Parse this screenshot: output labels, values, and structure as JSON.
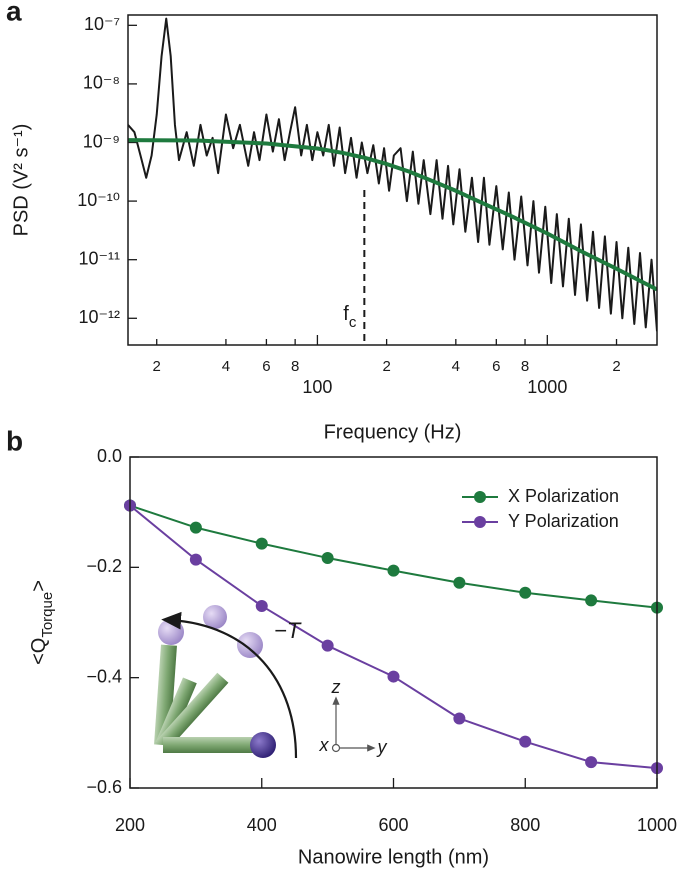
{
  "chart_data": [
    {
      "type": "line",
      "panel_label": "a",
      "x_label": "Frequency (Hz)",
      "y_label": "PSD (V² s⁻¹)",
      "log_x": true,
      "log_y": true,
      "xlim": [
        15,
        3000
      ],
      "ylim": [
        3.5e-13,
        1.5e-07
      ],
      "xticks": [
        {
          "value": 20,
          "label": "2"
        },
        {
          "value": 40,
          "label": "4"
        },
        {
          "value": 60,
          "label": "6"
        },
        {
          "value": 80,
          "label": "8"
        },
        100,
        {
          "value": 200,
          "label": "2"
        },
        {
          "value": 400,
          "label": "4"
        },
        {
          "value": 600,
          "label": "6"
        },
        {
          "value": 800,
          "label": "8"
        },
        1000,
        {
          "value": 2000,
          "label": "2"
        }
      ],
      "yticks": [
        {
          "value": 1e-07,
          "label": "10⁻⁷"
        },
        {
          "value": 1e-08,
          "label": "10⁻⁸"
        },
        {
          "value": 1e-09,
          "label": "10⁻⁹"
        },
        {
          "value": 1e-10,
          "label": "10⁻¹⁰"
        },
        {
          "value": 1e-11,
          "label": "10⁻¹¹"
        },
        {
          "value": 1e-12,
          "label": "10⁻¹²"
        }
      ],
      "annotation": {
        "text": [
          "f",
          "c"
        ],
        "x": 160
      },
      "series": [
        {
          "color": "#1a1a1a",
          "width": 2,
          "x": [
            15,
            16,
            17,
            18,
            19,
            20,
            21,
            22,
            23,
            24,
            25,
            27,
            29,
            31,
            33,
            35,
            37,
            40,
            43,
            46,
            50,
            53,
            56,
            60,
            64,
            68,
            72,
            76,
            80,
            85,
            90,
            95,
            100,
            106,
            112,
            118,
            125,
            132,
            140,
            148,
            156,
            165,
            175,
            185,
            195,
            205,
            215,
            230,
            245,
            260,
            275,
            290,
            310,
            330,
            350,
            370,
            390,
            415,
            440,
            470,
            500,
            530,
            560,
            600,
            640,
            680,
            720,
            770,
            820,
            870,
            920,
            980,
            1040,
            1100,
            1170,
            1240,
            1320,
            1400,
            1490,
            1580,
            1680,
            1780,
            1890,
            2000,
            2120,
            2250,
            2390,
            2530,
            2680,
            2840,
            3000
          ],
          "values": [
            2e-09,
            1.5e-09,
            6e-10,
            2.5e-10,
            6e-10,
            3e-09,
            3e-08,
            1.3e-07,
            3e-08,
            2e-09,
            5e-10,
            1.5e-09,
            4e-10,
            2e-09,
            6e-10,
            1.2e-09,
            3e-10,
            3e-09,
            8e-10,
            2e-09,
            4e-10,
            1.5e-09,
            5e-10,
            3e-09,
            7e-10,
            2.5e-09,
            5e-10,
            1.5e-09,
            4e-09,
            6e-10,
            2e-09,
            5e-10,
            1.5e-09,
            6e-10,
            2e-09,
            4e-10,
            1.8e-09,
            3e-10,
            1.2e-09,
            2.5e-10,
            1e-09,
            3e-10,
            9e-10,
            2e-10,
            8e-10,
            1.5e-10,
            6e-10,
            8e-10,
            1e-10,
            7e-10,
            9e-11,
            5e-10,
            6e-11,
            5e-10,
            5e-11,
            4e-10,
            4e-11,
            3.5e-10,
            3e-11,
            2.5e-10,
            2e-11,
            2.5e-10,
            1.8e-11,
            1.8e-10,
            1.5e-11,
            1.4e-10,
            1e-11,
            1.2e-10,
            8e-12,
            1e-10,
            6e-12,
            8e-11,
            4e-12,
            6e-11,
            3.5e-12,
            5e-11,
            2.5e-12,
            4e-11,
            2e-12,
            3e-11,
            1.5e-12,
            2.5e-11,
            1.2e-12,
            2e-11,
            1e-12,
            1.6e-11,
            8e-13,
            1.3e-11,
            7e-13,
            1e-11,
            6e-13
          ]
        },
        {
          "color": "#1e7a3e",
          "width": 4,
          "x": [
            15,
            30,
            60,
            100,
            130,
            160,
            200,
            250,
            300,
            400,
            500,
            700,
            1000,
            1400,
            2000,
            3000
          ],
          "values": [
            1.1e-09,
            1.08e-09,
            9.6e-10,
            7.9e-10,
            6.6e-10,
            5.5e-10,
            4.3e-10,
            3.2e-10,
            2.4e-10,
            1.5e-10,
            1e-10,
            5.5e-11,
            2.8e-11,
            1.4e-11,
            7e-12,
            3.1e-12
          ]
        }
      ]
    },
    {
      "type": "line",
      "panel_label": "b",
      "x_label": "Nanowire length (nm)",
      "y_label": [
        "<Q",
        "Torque",
        ">"
      ],
      "xlim": [
        200,
        1000
      ],
      "ylim": [
        -0.6,
        0
      ],
      "xticks": [
        200,
        400,
        600,
        800,
        1000
      ],
      "yticks": [
        {
          "value": 0,
          "label": "0.0"
        },
        {
          "value": -0.2,
          "label": "−0.2"
        },
        {
          "value": -0.4,
          "label": "−0.4"
        },
        {
          "value": -0.6,
          "label": "−0.6"
        }
      ],
      "markers": true,
      "legend": "top-right",
      "inset_labels": {
        "torque": "−T",
        "z": "z",
        "x": "x",
        "y": "y"
      },
      "series": [
        {
          "name": "X Polarization",
          "color": "#1e7a3e",
          "width": 2,
          "x": [
            200,
            300,
            400,
            500,
            600,
            700,
            800,
            900,
            1000
          ],
          "values": [
            -0.088,
            -0.128,
            -0.157,
            -0.183,
            -0.206,
            -0.228,
            -0.246,
            -0.26,
            -0.273
          ]
        },
        {
          "name": "Y Polarization",
          "color": "#6a3fa0",
          "width": 2,
          "x": [
            200,
            300,
            400,
            500,
            600,
            700,
            800,
            900,
            1000
          ],
          "values": [
            -0.088,
            -0.186,
            -0.27,
            -0.342,
            -0.398,
            -0.474,
            -0.516,
            -0.553,
            -0.564
          ]
        }
      ]
    }
  ]
}
